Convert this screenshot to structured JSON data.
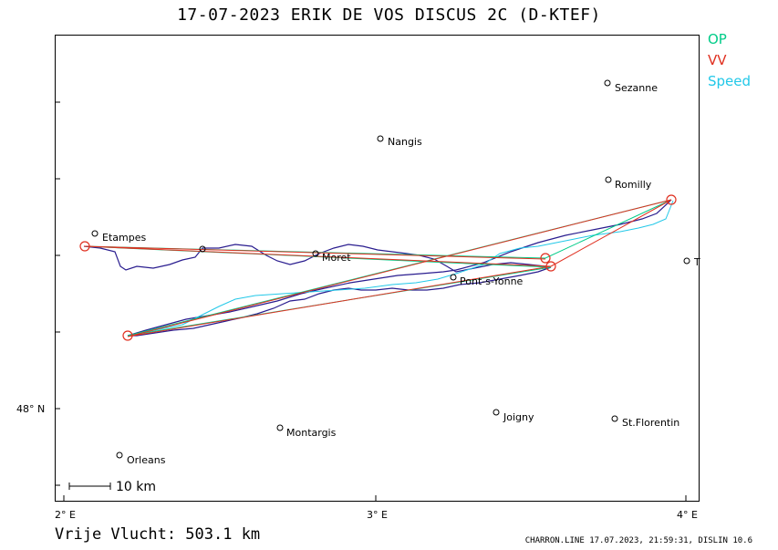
{
  "title": "17-07-2023   ERIK DE VOS   DISCUS 2C (D-KTEF)",
  "legend": [
    {
      "label": "OP",
      "color": "#00cc88"
    },
    {
      "label": "VV",
      "color": "#e03020"
    },
    {
      "label": "Speed",
      "color": "#22c8e8"
    }
  ],
  "distance_label": "Vrije Vlucht:  503.1 km",
  "footer": "CHARRON.LINE 17.07.2023, 21:59:31, DISLIN 10.6",
  "axes": {
    "x_ticks": [
      "2° E",
      "3° E",
      "4° E"
    ],
    "y_ticks": [
      "48° N"
    ]
  },
  "scale_label": "10 km",
  "towns": [
    {
      "name": "Sezanne"
    },
    {
      "name": "Nangis"
    },
    {
      "name": "Romilly"
    },
    {
      "name": "Etampes"
    },
    {
      "name": "Moret"
    },
    {
      "name": "Pont-s-Yonne"
    },
    {
      "name": "T"
    },
    {
      "name": "Joigny"
    },
    {
      "name": "St.Florentin"
    },
    {
      "name": "Montargis"
    },
    {
      "name": "Orleans"
    }
  ],
  "colors": {
    "track": "#2a1d8f",
    "op_line": "#00cc88",
    "vv_line": "#e03020",
    "speed_line": "#22c8e8"
  }
}
